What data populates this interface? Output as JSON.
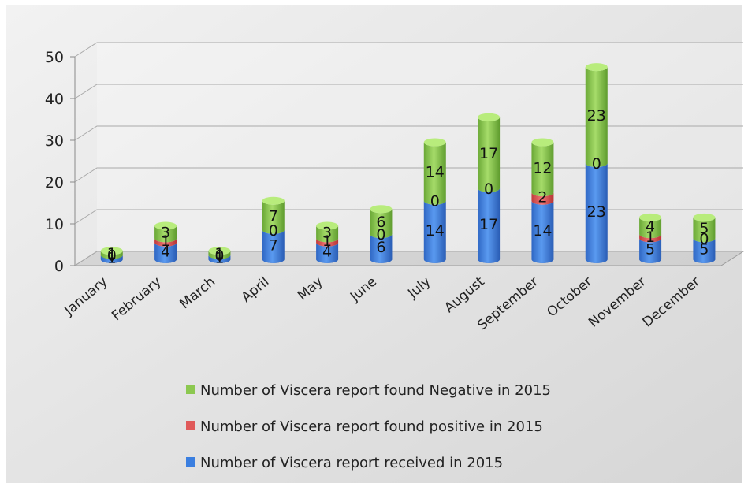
{
  "chart_data": {
    "type": "bar",
    "stacked": true,
    "style": "3d-cylinder",
    "title": "",
    "xlabel": "",
    "ylabel": "",
    "ylim": [
      0,
      50
    ],
    "yticks": [
      0,
      10,
      20,
      30,
      40,
      50
    ],
    "grid": true,
    "legend_position": "bottom",
    "categories": [
      "January",
      "February",
      "March",
      "April",
      "May",
      "June",
      "July",
      "August",
      "September",
      "October",
      "November",
      "December"
    ],
    "series": [
      {
        "name": "Number of Viscera report received in 2015",
        "color": "#3b7fe0",
        "values": [
          1,
          4,
          1,
          7,
          4,
          6,
          14,
          17,
          14,
          23,
          5,
          5
        ]
      },
      {
        "name": "Number of Viscera report found positive in 2015",
        "color": "#e05a5a",
        "values": [
          0,
          1,
          0,
          0,
          1,
          0,
          0,
          0,
          2,
          0,
          1,
          0
        ]
      },
      {
        "name": "Number of Viscera report found Negative in 2015",
        "color": "#8cc850",
        "values": [
          1,
          3,
          1,
          7,
          3,
          6,
          14,
          17,
          12,
          23,
          4,
          5
        ]
      }
    ],
    "legend_order": [
      2,
      1,
      0
    ]
  }
}
